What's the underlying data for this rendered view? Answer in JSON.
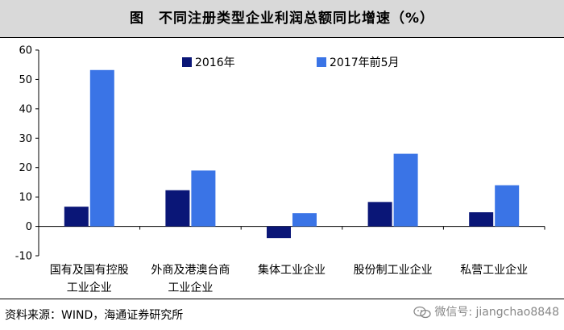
{
  "header": {
    "title": "图　不同注册类型企业利润总额同比增速（%）"
  },
  "footer": {
    "source": "资料来源：WIND，海通证券研究所"
  },
  "watermark": {
    "text": "微信号: jiangchao8848",
    "icon": "wechat-icon"
  },
  "colors": {
    "series_2016": "#0a1677",
    "series_2017": "#3a74e6",
    "axis": "#000000",
    "title_bg": "#d9d9d9"
  },
  "chart_data": {
    "type": "bar",
    "title": "",
    "xlabel": "",
    "ylabel": "",
    "ylim": [
      -10,
      60
    ],
    "yticks": [
      -10,
      0,
      10,
      20,
      30,
      40,
      50,
      60
    ],
    "grid": false,
    "legend_position": "top-center",
    "categories": [
      [
        "国有及国有控股",
        "工业企业"
      ],
      [
        "外商及港澳台商",
        "工业企业"
      ],
      [
        "集体工业企业"
      ],
      [
        "股份制工业企业"
      ],
      [
        "私营工业企业"
      ]
    ],
    "series": [
      {
        "name": "2016年",
        "values": [
          6.7,
          12.3,
          -4.0,
          8.3,
          4.8
        ]
      },
      {
        "name": "2017年前5月",
        "values": [
          53.2,
          19.0,
          4.5,
          24.7,
          14.0
        ]
      }
    ]
  }
}
